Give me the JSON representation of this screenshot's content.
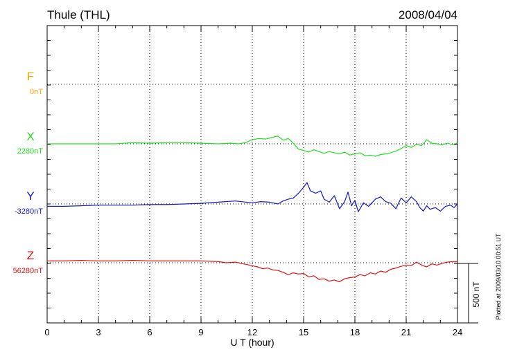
{
  "header": {
    "station": "Thule (THL)",
    "date": "2008/04/04"
  },
  "plotted_note": "Plotted at 2009/03/10 00:51 UT",
  "scale_label": "500 nT",
  "colors": {
    "F": "#f5a800",
    "X": "#22dd22",
    "Y": "#1414c8",
    "Z": "#e01010",
    "grid": "#000000"
  },
  "chart_data": {
    "type": "line",
    "title": "Thule (THL)",
    "xlabel": "U T (hour)",
    "xlim": [
      0,
      24
    ],
    "xticks": [
      "0",
      "3",
      "6",
      "9",
      "12",
      "15",
      "18",
      "21",
      "24"
    ],
    "scale_nT_per_bar": 500,
    "grid": true,
    "series": [
      {
        "name": "F",
        "baseline_label": "0nT",
        "x": [],
        "values": []
      },
      {
        "name": "X",
        "baseline_label": "2280nT",
        "x": [
          0,
          1,
          2,
          3,
          4,
          5,
          6,
          7,
          8,
          9,
          10,
          10.7,
          11.2,
          11.6,
          12,
          12.4,
          12.8,
          13.2,
          13.5,
          13.8,
          14.1,
          14.4,
          14.7,
          15,
          15.3,
          15.6,
          15.9,
          16.2,
          16.5,
          16.8,
          17.1,
          17.4,
          17.7,
          18,
          18.3,
          18.6,
          18.9,
          19.2,
          19.5,
          19.8,
          20.1,
          20.4,
          20.7,
          21,
          21.3,
          21.6,
          21.9,
          22.2,
          22.5,
          22.8,
          23.1,
          23.4,
          23.7,
          24
        ],
        "values": [
          0,
          0,
          0,
          0,
          0,
          10,
          5,
          10,
          10,
          5,
          0,
          5,
          0,
          10,
          35,
          45,
          40,
          55,
          65,
          30,
          45,
          5,
          -45,
          -55,
          -70,
          -50,
          -65,
          -80,
          -65,
          -75,
          -85,
          -70,
          -95,
          -85,
          -75,
          -100,
          -95,
          -105,
          -90,
          -85,
          -75,
          -60,
          -40,
          -15,
          -30,
          -5,
          -15,
          35,
          5,
          0,
          -10,
          5,
          -5,
          5
        ]
      },
      {
        "name": "Y",
        "baseline_label": "-3280nT",
        "x": [
          0,
          1,
          2,
          3,
          4,
          5,
          6,
          7,
          8,
          9,
          10,
          11,
          12,
          12.5,
          13,
          13.5,
          13.8,
          14.1,
          14.4,
          14.7,
          15,
          15.2,
          15.4,
          15.7,
          16,
          16.2,
          16.5,
          16.8,
          17.1,
          17.4,
          17.6,
          17.8,
          18,
          18.2,
          18.5,
          18.8,
          19.2,
          19.5,
          19.8,
          20.1,
          20.4,
          20.7,
          21,
          21.3,
          21.6,
          21.8,
          22,
          22.2,
          22.4,
          22.7,
          23,
          23.3,
          23.6,
          23.8,
          24
        ],
        "values": [
          -20,
          -20,
          -15,
          -10,
          -10,
          -10,
          -5,
          -5,
          0,
          5,
          15,
          25,
          10,
          20,
          15,
          0,
          25,
          40,
          50,
          90,
          140,
          180,
          110,
          90,
          110,
          40,
          15,
          70,
          -40,
          20,
          100,
          -15,
          30,
          -65,
          10,
          -20,
          40,
          60,
          20,
          5,
          -40,
          50,
          10,
          60,
          20,
          -30,
          -60,
          -15,
          -45,
          -30,
          -60,
          -20,
          -10,
          -30,
          0
        ]
      },
      {
        "name": "Z",
        "baseline_label": "56280nT",
        "x": [
          0,
          1,
          2,
          3,
          4,
          5,
          6,
          7,
          8,
          9,
          10,
          10.5,
          11,
          11.5,
          12,
          12.3,
          12.6,
          12.9,
          13.2,
          13.5,
          13.8,
          14.1,
          14.4,
          14.7,
          15,
          15.3,
          15.6,
          15.9,
          16.2,
          16.5,
          16.8,
          17.1,
          17.4,
          17.7,
          18,
          18.3,
          18.6,
          18.9,
          19.2,
          19.5,
          19.8,
          20.1,
          20.4,
          20.7,
          21,
          21.3,
          21.6,
          21.9,
          22.2,
          22.5,
          22.8,
          23.1,
          23.4,
          23.7,
          24
        ],
        "values": [
          15,
          15,
          20,
          15,
          15,
          20,
          15,
          15,
          15,
          15,
          10,
          0,
          5,
          -10,
          -25,
          -35,
          -50,
          -45,
          -60,
          -65,
          -80,
          -100,
          -85,
          -95,
          -90,
          -120,
          -110,
          -140,
          -135,
          -155,
          -145,
          -160,
          -135,
          -125,
          -120,
          -100,
          -110,
          -85,
          -95,
          -70,
          -80,
          -55,
          -45,
          -30,
          -20,
          -25,
          5,
          -20,
          -35,
          -10,
          -20,
          -5,
          5,
          10,
          10
        ]
      }
    ]
  }
}
